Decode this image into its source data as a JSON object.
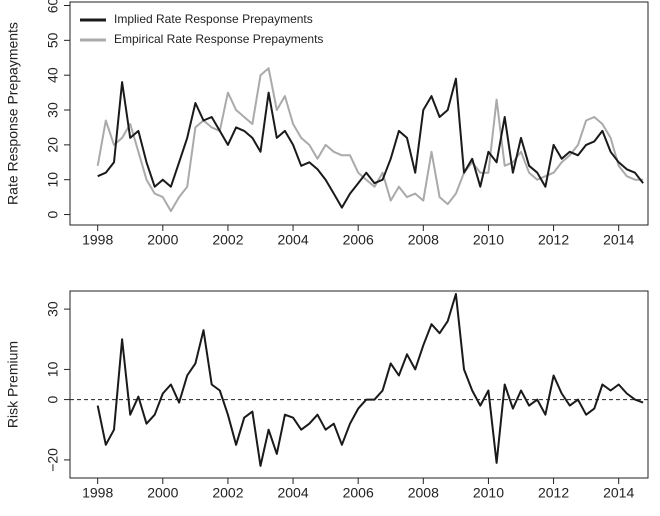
{
  "chart_data": [
    {
      "type": "line",
      "y_label": "Rate Response Prepayments",
      "legend": "top-left",
      "x": [
        1998,
        1998.25,
        1998.5,
        1998.75,
        1999,
        1999.25,
        1999.5,
        1999.75,
        2000,
        2000.25,
        2000.5,
        2000.75,
        2001,
        2001.25,
        2001.5,
        2001.75,
        2002,
        2002.25,
        2002.5,
        2002.75,
        2003,
        2003.25,
        2003.5,
        2003.75,
        2004,
        2004.25,
        2004.5,
        2004.75,
        2005,
        2005.25,
        2005.5,
        2005.75,
        2006,
        2006.25,
        2006.5,
        2006.75,
        2007,
        2007.25,
        2007.5,
        2007.75,
        2008,
        2008.25,
        2008.5,
        2008.75,
        2009,
        2009.25,
        2009.5,
        2009.75,
        2010,
        2010.25,
        2010.5,
        2010.75,
        2011,
        2011.25,
        2011.5,
        2011.75,
        2012,
        2012.25,
        2012.5,
        2012.75,
        2013,
        2013.25,
        2013.5,
        2013.75,
        2014,
        2014.25,
        2014.5,
        2014.75
      ],
      "series": [
        {
          "name": "Implied Rate Response Prepayments",
          "color": "#1a1a1a",
          "values": [
            11,
            12,
            15,
            38,
            22,
            24,
            15,
            8,
            10,
            8,
            15,
            22,
            32,
            27,
            28,
            24,
            20,
            25,
            24,
            22,
            18,
            35,
            22,
            24,
            20,
            14,
            15,
            13,
            10,
            6,
            2,
            6,
            9,
            12,
            9,
            10,
            16,
            24,
            22,
            12,
            30,
            34,
            28,
            30,
            39,
            12,
            16,
            8,
            18,
            15,
            28,
            12,
            22,
            14,
            12,
            8,
            20,
            16,
            18,
            17,
            20,
            21,
            24,
            18,
            15,
            13,
            12,
            9
          ]
        },
        {
          "name": "Empirical Rate Response Prepayments",
          "color": "#aaaaaa",
          "values": [
            14,
            27,
            20,
            22,
            26,
            18,
            10,
            6,
            5,
            1,
            5,
            8,
            25,
            27,
            25,
            24,
            35,
            30,
            28,
            26,
            40,
            42,
            30,
            34,
            26,
            22,
            20,
            16,
            20,
            18,
            17,
            17,
            12,
            10,
            8,
            12,
            4,
            8,
            5,
            6,
            4,
            18,
            5,
            3,
            6,
            12,
            15,
            12,
            12,
            33,
            14,
            15,
            18,
            12,
            10,
            11,
            12,
            15,
            17,
            20,
            27,
            28,
            26,
            22,
            14,
            11,
            10,
            10
          ]
        }
      ],
      "xlim": [
        1997.15,
        2014.9
      ],
      "xticks": [
        1998,
        2000,
        2002,
        2004,
        2006,
        2008,
        2010,
        2012,
        2014
      ],
      "ylim": [
        -3,
        61
      ],
      "yticks": [
        0,
        10,
        20,
        30,
        40,
        50,
        60
      ]
    },
    {
      "type": "line",
      "y_label": "Risk Premium",
      "color": "#1a1a1a",
      "hline": 0,
      "x": [
        1998,
        1998.25,
        1998.5,
        1998.75,
        1999,
        1999.25,
        1999.5,
        1999.75,
        2000,
        2000.25,
        2000.5,
        2000.75,
        2001,
        2001.25,
        2001.5,
        2001.75,
        2002,
        2002.25,
        2002.5,
        2002.75,
        2003,
        2003.25,
        2003.5,
        2003.75,
        2004,
        2004.25,
        2004.5,
        2004.75,
        2005,
        2005.25,
        2005.5,
        2005.75,
        2006,
        2006.25,
        2006.5,
        2006.75,
        2007,
        2007.25,
        2007.5,
        2007.75,
        2008,
        2008.25,
        2008.5,
        2008.75,
        2009,
        2009.25,
        2009.5,
        2009.75,
        2010,
        2010.25,
        2010.5,
        2010.75,
        2011,
        2011.25,
        2011.5,
        2011.75,
        2012,
        2012.25,
        2012.5,
        2012.75,
        2013,
        2013.25,
        2013.5,
        2013.75,
        2014,
        2014.25,
        2014.5,
        2014.75
      ],
      "values": [
        -2,
        -15,
        -10,
        20,
        -5,
        1,
        -8,
        -5,
        2,
        5,
        -1,
        8,
        12,
        23,
        5,
        3,
        -5,
        -15,
        -6,
        -4,
        -22,
        -10,
        -18,
        -5,
        -6,
        -10,
        -8,
        -5,
        -10,
        -8,
        -15,
        -8,
        -3,
        0,
        0,
        3,
        12,
        8,
        15,
        10,
        18,
        25,
        22,
        26,
        35,
        10,
        3,
        -2,
        3,
        -21,
        5,
        -3,
        3,
        -2,
        0,
        -5,
        8,
        2,
        -2,
        0,
        -5,
        -3,
        5,
        3,
        5,
        2,
        0,
        -1
      ],
      "xlim": [
        1997.15,
        2014.9
      ],
      "xticks": [
        1998,
        2000,
        2002,
        2004,
        2006,
        2008,
        2010,
        2012,
        2014
      ],
      "ylim": [
        -26,
        36
      ],
      "yticks": [
        {
          "value": -20,
          "label": "−20"
        },
        0,
        10,
        30
      ]
    }
  ]
}
